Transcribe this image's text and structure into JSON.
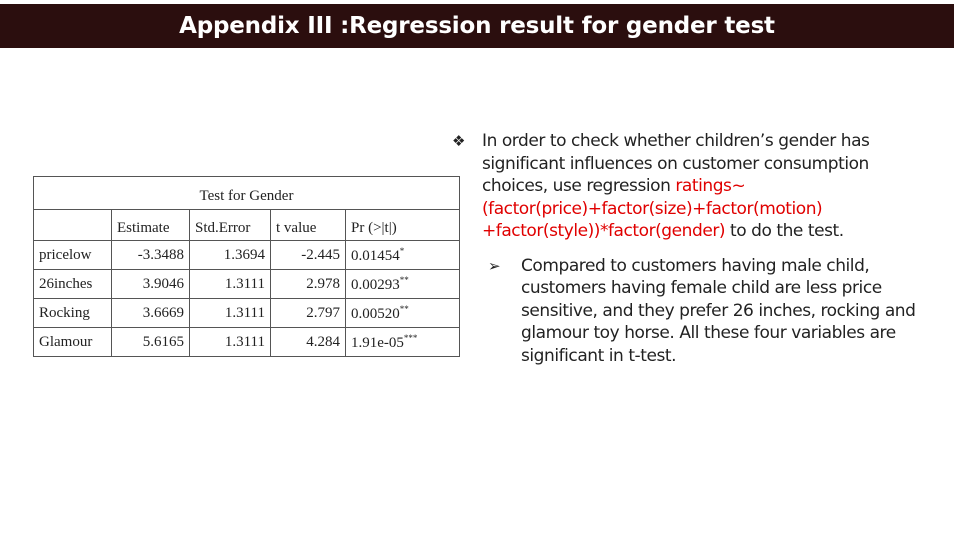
{
  "slide": {
    "title": "Appendix III :Regression result for gender test"
  },
  "table": {
    "caption": "Test for Gender",
    "headers": [
      "",
      "Estimate",
      "Std.Error",
      "t value",
      "Pr (>|t|)"
    ],
    "rows": [
      {
        "label": "pricelow",
        "estimate": "-3.3488",
        "std_error": "1.3694",
        "t_value": "-2.445",
        "p_value": "0.01454",
        "sig": "*"
      },
      {
        "label": "26inches",
        "estimate": "3.9046",
        "std_error": "1.3111",
        "t_value": "2.978",
        "p_value": "0.00293",
        "sig": "**"
      },
      {
        "label": "Rocking",
        "estimate": "3.6669",
        "std_error": "1.3111",
        "t_value": "2.797",
        "p_value": "0.00520",
        "sig": "**"
      },
      {
        "label": "Glamour",
        "estimate": "5.6165",
        "std_error": "1.3111",
        "t_value": "4.284",
        "p_value": "1.91e-05",
        "sig": "***"
      }
    ]
  },
  "bullets": {
    "main_marker": "❖",
    "main_text": "In order to check whether children’s gender has significant influences on customer consumption choices, use regression",
    "formula": "ratings~(factor(price)+factor(size)+factor(motion) +factor(style))*factor(gender)",
    "main_suffix": " to do the test.",
    "sub_marker": "➢",
    "sub_text": "Compared to customers having male child, customers having female child are less price sensitive, and they prefer 26 inches, rocking and glamour toy horse. All these four variables are significant in t-test."
  }
}
